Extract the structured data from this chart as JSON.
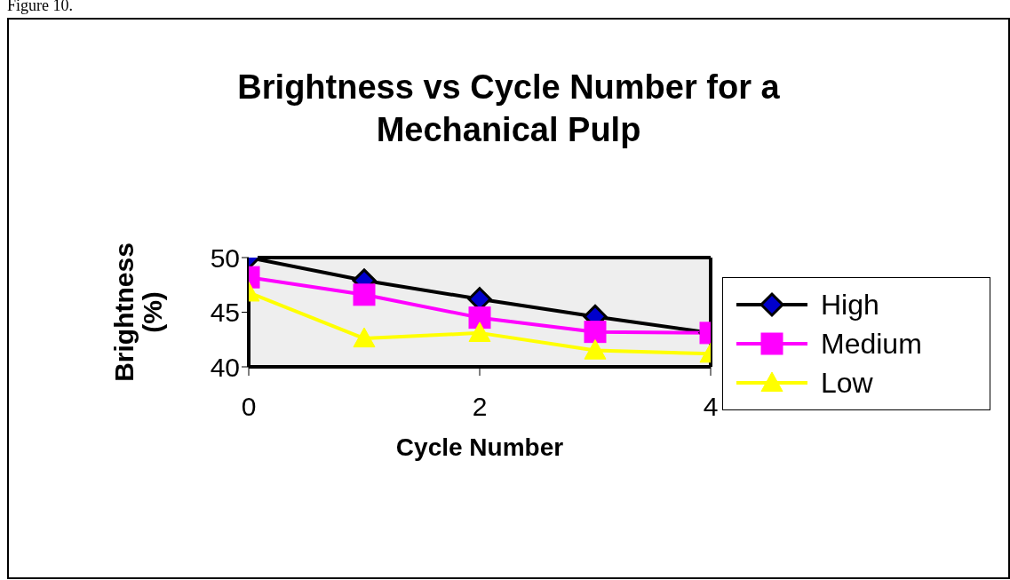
{
  "chart_data": {
    "type": "line",
    "title": "Brightness vs Cycle Number for a Mechanical Pulp",
    "xlabel": "Cycle Number",
    "ylabel": "Brightness (%)",
    "annotations": [
      "Figure 10."
    ],
    "x": [
      0,
      1,
      2,
      3,
      4
    ],
    "xlim": [
      0,
      4
    ],
    "xticks": [
      0,
      2,
      4
    ],
    "ylim": [
      40,
      50
    ],
    "yticks": [
      40,
      45,
      50
    ],
    "grid": false,
    "legend": "right",
    "line_style": "solid",
    "series": [
      {
        "name": "High",
        "color": "#000000",
        "marker": "diamond",
        "values": [
          50,
          47.9,
          46.2,
          44.6,
          43.1
        ]
      },
      {
        "name": "Medium",
        "color": "#ff00ff",
        "marker": "square",
        "values": [
          48.2,
          46.6,
          44.5,
          43.2,
          43.1
        ]
      },
      {
        "name": "Low",
        "color": "#ffff00",
        "marker": "triangle",
        "values": [
          46.8,
          42.6,
          43.1,
          41.5,
          41.2
        ]
      }
    ]
  }
}
